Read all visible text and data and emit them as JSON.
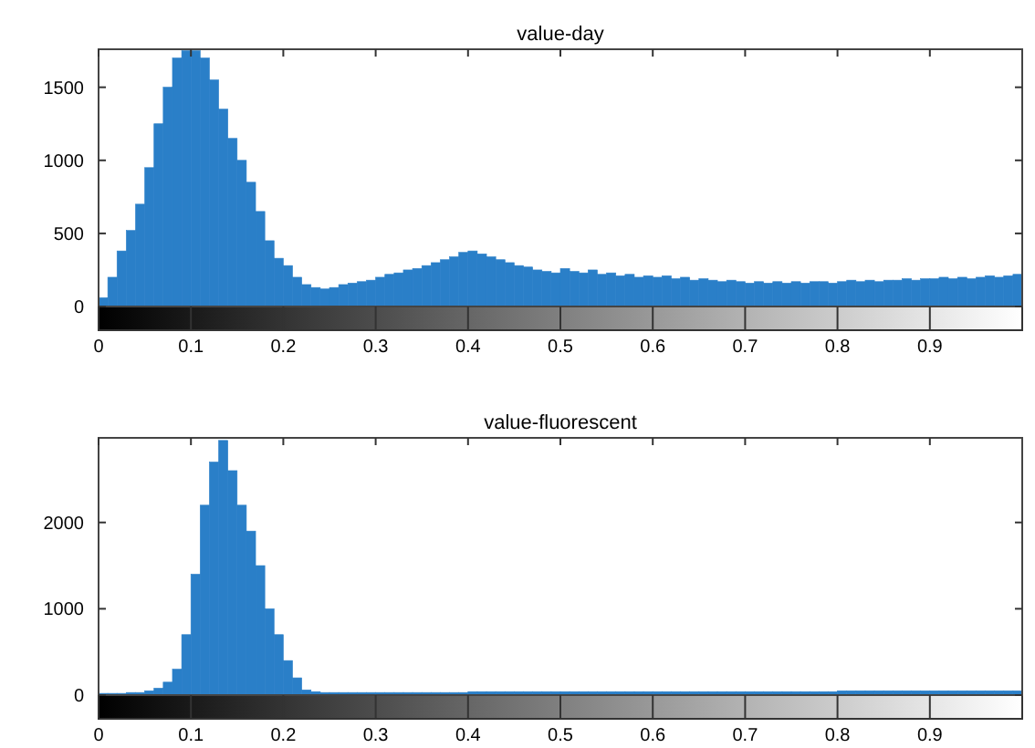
{
  "chart_data": [
    {
      "type": "histogram",
      "title": "value-day",
      "color": "#2a7fc8",
      "xlim": [
        0,
        1
      ],
      "ylim": [
        0,
        1760
      ],
      "xticks": [
        0,
        0.1,
        0.2,
        0.3,
        0.4,
        0.5,
        0.6,
        0.7,
        0.8,
        0.9
      ],
      "yticks": [
        0,
        500,
        1000,
        1500
      ],
      "bins": [
        0,
        0.01,
        0.02,
        0.03,
        0.04,
        0.05,
        0.06,
        0.07,
        0.08,
        0.09,
        0.1,
        0.11,
        0.12,
        0.13,
        0.14,
        0.15,
        0.16,
        0.17,
        0.18,
        0.19,
        0.2,
        0.21,
        0.22,
        0.23,
        0.24,
        0.25,
        0.26,
        0.27,
        0.28,
        0.29,
        0.3,
        0.31,
        0.32,
        0.33,
        0.34,
        0.35,
        0.36,
        0.37,
        0.38,
        0.39,
        0.4,
        0.41,
        0.42,
        0.43,
        0.44,
        0.45,
        0.46,
        0.47,
        0.48,
        0.49,
        0.5,
        0.51,
        0.52,
        0.53,
        0.54,
        0.55,
        0.56,
        0.57,
        0.58,
        0.59,
        0.6,
        0.61,
        0.62,
        0.63,
        0.64,
        0.65,
        0.66,
        0.67,
        0.68,
        0.69,
        0.7,
        0.71,
        0.72,
        0.73,
        0.74,
        0.75,
        0.76,
        0.77,
        0.78,
        0.79,
        0.8,
        0.81,
        0.82,
        0.83,
        0.84,
        0.85,
        0.86,
        0.87,
        0.88,
        0.89,
        0.9,
        0.91,
        0.92,
        0.93,
        0.94,
        0.95,
        0.96,
        0.97,
        0.98,
        0.99,
        1
      ],
      "values": [
        60,
        200,
        380,
        520,
        700,
        950,
        1250,
        1500,
        1700,
        1750,
        1750,
        1700,
        1550,
        1350,
        1150,
        1000,
        850,
        650,
        450,
        330,
        280,
        200,
        150,
        130,
        120,
        130,
        150,
        160,
        170,
        180,
        200,
        220,
        230,
        250,
        260,
        280,
        300,
        320,
        340,
        370,
        380,
        360,
        340,
        320,
        300,
        280,
        270,
        250,
        240,
        230,
        260,
        240,
        230,
        250,
        220,
        230,
        210,
        220,
        200,
        210,
        200,
        210,
        190,
        200,
        180,
        190,
        180,
        170,
        180,
        170,
        160,
        170,
        160,
        170,
        160,
        170,
        160,
        170,
        170,
        160,
        170,
        180,
        170,
        180,
        170,
        180,
        180,
        190,
        180,
        190,
        190,
        200,
        190,
        200,
        190,
        200,
        210,
        200,
        210,
        220
      ]
    },
    {
      "type": "histogram",
      "title": "value-fluorescent",
      "color": "#2a7fc8",
      "xlim": [
        0,
        1
      ],
      "ylim": [
        0,
        2980
      ],
      "xticks": [
        0,
        0.1,
        0.2,
        0.3,
        0.4,
        0.5,
        0.6,
        0.7,
        0.8,
        0.9
      ],
      "yticks": [
        0,
        1000,
        2000
      ],
      "bins": [
        0,
        0.01,
        0.02,
        0.03,
        0.04,
        0.05,
        0.06,
        0.07,
        0.08,
        0.09,
        0.1,
        0.11,
        0.12,
        0.13,
        0.14,
        0.15,
        0.16,
        0.17,
        0.18,
        0.19,
        0.2,
        0.21,
        0.22,
        0.23,
        0.24,
        0.25,
        0.26,
        0.27,
        0.28,
        0.29,
        0.3,
        0.31,
        0.32,
        0.33,
        0.34,
        0.35,
        0.36,
        0.37,
        0.38,
        0.39,
        0.4,
        0.41,
        0.42,
        0.43,
        0.44,
        0.45,
        0.46,
        0.47,
        0.48,
        0.49,
        0.5,
        0.51,
        0.52,
        0.53,
        0.54,
        0.55,
        0.56,
        0.57,
        0.58,
        0.59,
        0.6,
        0.61,
        0.62,
        0.63,
        0.64,
        0.65,
        0.66,
        0.67,
        0.68,
        0.69,
        0.7,
        0.71,
        0.72,
        0.73,
        0.74,
        0.75,
        0.76,
        0.77,
        0.78,
        0.79,
        0.8,
        0.81,
        0.82,
        0.83,
        0.84,
        0.85,
        0.86,
        0.87,
        0.88,
        0.89,
        0.9,
        0.91,
        0.92,
        0.93,
        0.94,
        0.95,
        0.96,
        0.97,
        0.98,
        0.99,
        1
      ],
      "values": [
        20,
        20,
        20,
        30,
        30,
        50,
        80,
        150,
        300,
        700,
        1400,
        2200,
        2700,
        2950,
        2600,
        2200,
        1900,
        1500,
        1000,
        700,
        400,
        200,
        60,
        40,
        30,
        30,
        30,
        30,
        30,
        30,
        30,
        30,
        30,
        30,
        30,
        30,
        30,
        30,
        30,
        30,
        40,
        40,
        40,
        40,
        40,
        40,
        40,
        40,
        40,
        40,
        40,
        40,
        40,
        40,
        40,
        40,
        40,
        40,
        40,
        40,
        40,
        40,
        40,
        40,
        40,
        40,
        40,
        40,
        40,
        40,
        40,
        40,
        40,
        40,
        40,
        40,
        40,
        40,
        40,
        40,
        50,
        50,
        50,
        50,
        50,
        50,
        50,
        50,
        50,
        50,
        50,
        50,
        50,
        50,
        50,
        50,
        50,
        50,
        50,
        50
      ]
    }
  ]
}
